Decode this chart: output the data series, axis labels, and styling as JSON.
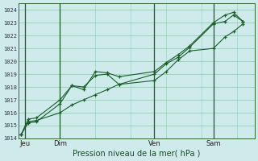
{
  "bg_color": "#ceeaea",
  "grid_color": "#99ccbb",
  "line_color": "#1a5c2a",
  "marker_color": "#1a5c2a",
  "title": "Pression niveau de la mer( hPa )",
  "ylim": [
    1014,
    1024.5
  ],
  "yticks": [
    1014,
    1015,
    1016,
    1017,
    1018,
    1019,
    1020,
    1021,
    1022,
    1023,
    1024
  ],
  "day_labels": [
    "Jeu",
    "Dim",
    "Ven",
    "Sam"
  ],
  "day_positions": [
    0.5,
    3.5,
    11.5,
    16.5
  ],
  "xlim": [
    0,
    20
  ],
  "xminor_step": 1,
  "series1_x": [
    0.2,
    0.8,
    1.5,
    3.5,
    4.5,
    5.5,
    6.5,
    7.5,
    8.5,
    11.5,
    12.5,
    13.5,
    14.5,
    16.5,
    17.5,
    18.2,
    19.0
  ],
  "series1_y": [
    1014.3,
    1015.2,
    1015.3,
    1016.7,
    1018.1,
    1018.0,
    1018.9,
    1019.0,
    1018.2,
    1019.0,
    1019.8,
    1020.3,
    1021.1,
    1022.9,
    1023.1,
    1023.6,
    1023.1
  ],
  "series2_x": [
    0.2,
    0.8,
    1.5,
    3.5,
    4.5,
    5.5,
    6.5,
    7.5,
    8.5,
    11.5,
    12.5,
    13.5,
    14.5,
    16.5,
    17.5,
    18.2,
    19.0
  ],
  "series2_y": [
    1014.3,
    1015.5,
    1015.6,
    1017.0,
    1018.1,
    1017.8,
    1019.2,
    1019.1,
    1018.8,
    1019.2,
    1019.9,
    1020.5,
    1021.2,
    1023.0,
    1023.6,
    1023.8,
    1023.1
  ],
  "series3_x": [
    0.2,
    0.8,
    1.5,
    3.5,
    4.5,
    5.5,
    6.5,
    7.5,
    8.5,
    11.5,
    12.5,
    13.5,
    14.5,
    16.5,
    17.5,
    18.2,
    19.0
  ],
  "series3_y": [
    1014.3,
    1015.3,
    1015.4,
    1016.0,
    1016.6,
    1017.0,
    1017.4,
    1017.8,
    1018.2,
    1018.5,
    1019.2,
    1020.1,
    1020.8,
    1021.0,
    1021.9,
    1022.3,
    1022.9
  ]
}
